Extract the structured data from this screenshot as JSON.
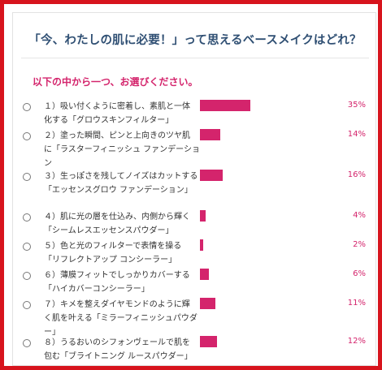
{
  "question": "「今、わたしの肌に必要！」って思えるベースメイクはどれ？",
  "instruction": "以下の中から一つ、お選びください。",
  "accent_color": "#d4246c",
  "frame_color": "#d7141d",
  "options": [
    {
      "line1": "１）吸い付くように密着し、素肌と一体",
      "line2": "化する「グロウスキンフィルター」",
      "percent": 35,
      "percent_label": "35%"
    },
    {
      "line1": "２）塗った瞬間、ピンと上向きのツヤ肌",
      "line2": "に「ラスターフィニッシュ ファンデーション",
      "percent": 14,
      "percent_label": "14%"
    },
    {
      "line1": "３）生っぽさを残してノイズはカットする",
      "line2": "「エッセンスグロウ ファンデーション」",
      "percent": 16,
      "percent_label": "16%"
    },
    {
      "line1": "４）肌に光の層を仕込み、内側から輝く",
      "line2": "「シームレスエッセンスパウダー」",
      "percent": 4,
      "percent_label": "4%"
    },
    {
      "line1": "５）色と光のフィルターで表情を操る",
      "line2": "「リフレクトアップ コンシーラー」",
      "percent": 2,
      "percent_label": "2%"
    },
    {
      "line1": "６）薄膜フィットでしっかりカバーする",
      "line2": "「ハイカバーコンシーラー」",
      "percent": 6,
      "percent_label": "6%"
    },
    {
      "line1": "７）キメを整えダイヤモンドのように輝",
      "line2": "く肌を叶える「ミラーフィニッシュパウダー」",
      "percent": 11,
      "percent_label": "11%"
    },
    {
      "line1": "８）うるおいのシフォンヴェールで肌を",
      "line2": "包む「ブライトニング ルースパウダー」",
      "percent": 12,
      "percent_label": "12%"
    }
  ]
}
